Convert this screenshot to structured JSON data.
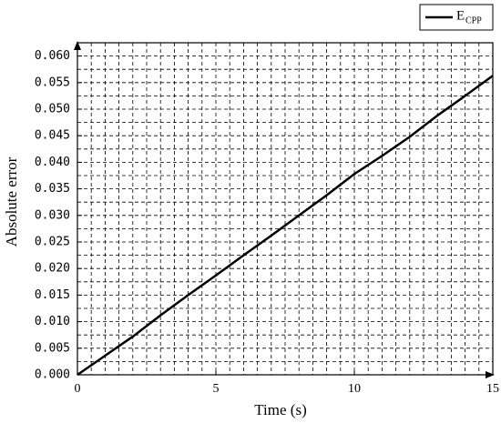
{
  "chart_data": {
    "type": "line",
    "x_label": "Time (s)",
    "y_label": "Absolute error",
    "x": [
      0,
      1,
      2,
      3,
      4,
      5,
      6,
      7,
      8,
      9,
      10,
      11,
      12,
      13,
      14,
      15
    ],
    "series": [
      {
        "name": "E",
        "name_subscript": "CPP",
        "color": "#000000",
        "values": [
          0,
          0.0036,
          0.0072,
          0.0112,
          0.015,
          0.0187,
          0.0225,
          0.0262,
          0.03,
          0.0338,
          0.0378,
          0.0412,
          0.0448,
          0.0488,
          0.0525,
          0.0563
        ]
      }
    ],
    "xlim": [
      0,
      15
    ],
    "ylim": [
      0,
      0.0625
    ],
    "xticks": [
      0,
      5,
      10,
      15
    ],
    "yticks": [
      {
        "value": 0,
        "label": "0.000"
      },
      {
        "value": 0.005,
        "label": "0.005"
      },
      {
        "value": 0.01,
        "label": "0.010"
      },
      {
        "value": 0.015,
        "label": "0.015"
      },
      {
        "value": 0.02,
        "label": "0.020"
      },
      {
        "value": 0.025,
        "label": "0.025"
      },
      {
        "value": 0.03,
        "label": "0.030"
      },
      {
        "value": 0.035,
        "label": "0.035"
      },
      {
        "value": 0.04,
        "label": "0.040"
      },
      {
        "value": 0.045,
        "label": "0.045"
      },
      {
        "value": 0.05,
        "label": "0.050"
      },
      {
        "value": 0.055,
        "label": "0.055"
      },
      {
        "value": 0.06,
        "label": "0.060"
      }
    ],
    "xgrid": [
      0.5,
      1,
      1.5,
      2,
      2.5,
      3,
      3.5,
      4,
      4.5,
      5,
      5.5,
      6,
      6.5,
      7,
      7.5,
      8,
      8.5,
      9,
      9.5,
      10,
      10.5,
      11,
      11.5,
      12,
      12.5,
      13,
      13.5,
      14,
      14.5
    ],
    "ygrid": [
      0.0025,
      0.005,
      0.0075,
      0.01,
      0.0125,
      0.015,
      0.0175,
      0.02,
      0.0225,
      0.025,
      0.0275,
      0.03,
      0.0325,
      0.035,
      0.0375,
      0.04,
      0.0425,
      0.045,
      0.0475,
      0.05,
      0.0525,
      0.055,
      0.0575,
      0.06
    ],
    "grid": true,
    "legend": "top-right"
  }
}
